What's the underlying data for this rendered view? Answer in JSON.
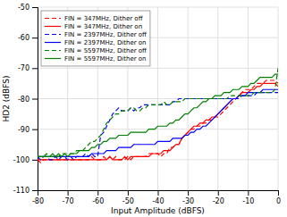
{
  "chart_data": {
    "type": "line",
    "xlabel": "Input Amplitude (dBFS)",
    "ylabel": "HD2 (dBFS)",
    "xlim": [
      -80,
      0
    ],
    "ylim": [
      -110,
      -50
    ],
    "xticks": [
      -80,
      -70,
      -60,
      -50,
      -40,
      -30,
      -20,
      -10,
      0
    ],
    "yticks": [
      -110,
      -100,
      -90,
      -80,
      -70,
      -60,
      -50
    ],
    "grid": true,
    "legend": "upper left",
    "x": [
      -80,
      -79,
      -78,
      -77,
      -76,
      -75,
      -74,
      -73,
      -72,
      -71,
      -70,
      -69,
      -68,
      -67,
      -66,
      -65,
      -64,
      -63,
      -62,
      -61,
      -60,
      -59,
      -58,
      -57,
      -56,
      -55,
      -54,
      -53,
      -52,
      -51,
      -50,
      -49,
      -48,
      -47,
      -46,
      -45,
      -44,
      -43,
      -42,
      -41,
      -40,
      -39,
      -38,
      -37,
      -36,
      -35,
      -34,
      -33,
      -32,
      -31,
      -30,
      -29,
      -28,
      -27,
      -26,
      -25,
      -24,
      -23,
      -22,
      -21,
      -20,
      -19,
      -18,
      -17,
      -16,
      -15,
      -14,
      -13,
      -12,
      -11,
      -10,
      -9,
      -8,
      -7,
      -6,
      -5,
      -4,
      -3,
      -2,
      -1,
      0
    ],
    "series": [
      {
        "name": "FIN = 347MHz, Dither off",
        "color": "#FF0000",
        "line_style": "dashed",
        "values": [
          -100,
          -101,
          -100,
          -100,
          -100,
          -100,
          -100,
          -100,
          -100,
          -100,
          -100,
          -100,
          -100,
          -100,
          -100,
          -100,
          -100,
          -100,
          -99,
          -100,
          -100,
          -100,
          -99,
          -100,
          -99,
          -100,
          -99,
          -100,
          -100,
          -100,
          -99,
          -100,
          -99,
          -99,
          -99,
          -99,
          -99,
          -98,
          -98,
          -98,
          -98,
          -99,
          -98,
          -98,
          -96,
          -96,
          -95,
          -95,
          -93,
          -92,
          -91,
          -90,
          -90,
          -89,
          -89,
          -88,
          -88,
          -87,
          -87,
          -86,
          -86,
          -85,
          -84,
          -83,
          -82,
          -81,
          -80,
          -79,
          -78,
          -77,
          -77,
          -77,
          -76,
          -75,
          -75,
          -75,
          -74,
          -74,
          -74,
          -74,
          -75
        ]
      },
      {
        "name": "FIN = 347MHz, Dither on",
        "color": "#FF0000",
        "line_style": "solid",
        "values": [
          -100,
          -100,
          -100,
          -100,
          -100,
          -100,
          -100,
          -100,
          -100,
          -100,
          -100,
          -100,
          -100,
          -100,
          -100,
          -100,
          -100,
          -100,
          -100,
          -100,
          -100,
          -100,
          -100,
          -100,
          -99,
          -100,
          -100,
          -100,
          -100,
          -99,
          -100,
          -99,
          -99,
          -99,
          -99,
          -99,
          -99,
          -99,
          -98,
          -98,
          -98,
          -98,
          -97,
          -97,
          -97,
          -96,
          -95,
          -95,
          -93,
          -92,
          -91,
          -90,
          -89,
          -89,
          -88,
          -88,
          -87,
          -87,
          -86,
          -86,
          -85,
          -84,
          -83,
          -82,
          -81,
          -80,
          -80,
          -79,
          -78,
          -78,
          -78,
          -77,
          -77,
          -76,
          -76,
          -75,
          -75,
          -75,
          -75,
          -75,
          -76
        ]
      },
      {
        "name": "FIN = 2397MHz, Dither off",
        "color": "#0000FF",
        "line_style": "dashed",
        "values": [
          -99,
          -100,
          -99,
          -99,
          -100,
          -100,
          -99,
          -100,
          -99,
          -99,
          -100,
          -99,
          -100,
          -99,
          -99,
          -99,
          -98,
          -99,
          -98,
          -99,
          -99,
          -92,
          -91,
          -89,
          -87,
          -85,
          -84,
          -83,
          -84,
          -84,
          -84,
          -83,
          -84,
          -83,
          -83,
          -82,
          -82,
          -82,
          -82,
          -82,
          -82,
          -82,
          -82,
          -82,
          -82,
          -81,
          -81,
          -80,
          -80,
          -80,
          -80,
          -80,
          -80,
          -80,
          -80,
          -80,
          -80,
          -80,
          -80,
          -80,
          -80,
          -80,
          -80,
          -80,
          -80,
          -80,
          -80,
          -80,
          -79,
          -79,
          -79,
          -79,
          -79,
          -78,
          -78,
          -78,
          -78,
          -78,
          -78,
          -78,
          -78
        ]
      },
      {
        "name": "FIN = 2397MHz, Dither on",
        "color": "#0000FF",
        "line_style": "solid",
        "values": [
          -99,
          -99,
          -99,
          -99,
          -99,
          -99,
          -99,
          -99,
          -99,
          -99,
          -99,
          -99,
          -99,
          -99,
          -99,
          -99,
          -99,
          -99,
          -98,
          -98,
          -98,
          -98,
          -98,
          -97,
          -97,
          -97,
          -97,
          -96,
          -96,
          -96,
          -96,
          -96,
          -95,
          -95,
          -95,
          -95,
          -95,
          -95,
          -95,
          -95,
          -94,
          -94,
          -94,
          -94,
          -94,
          -93,
          -93,
          -93,
          -93,
          -92,
          -92,
          -91,
          -91,
          -90,
          -90,
          -89,
          -89,
          -88,
          -87,
          -86,
          -85,
          -84,
          -83,
          -82,
          -81,
          -80,
          -80,
          -79,
          -79,
          -79,
          -78,
          -78,
          -78,
          -78,
          -78,
          -77,
          -77,
          -77,
          -77,
          -77,
          -77
        ]
      },
      {
        "name": "FIN = 5597MHz, Dither off",
        "color": "#008000",
        "line_style": "dashed",
        "values": [
          -99,
          -99,
          -99,
          -98,
          -99,
          -99,
          -99,
          -99,
          -98,
          -98,
          -98,
          -98,
          -98,
          -97,
          -97,
          -97,
          -96,
          -95,
          -94,
          -94,
          -93,
          -92,
          -90,
          -88,
          -87,
          -86,
          -85,
          -85,
          -84,
          -84,
          -84,
          -83,
          -83,
          -84,
          -84,
          -83,
          -83,
          -82,
          -82,
          -82,
          -82,
          -82,
          -81,
          -82,
          -82,
          -81,
          -81,
          -81,
          -81,
          -80,
          -80,
          -80,
          -80,
          -80,
          -80,
          -80,
          -80,
          -80,
          -80,
          -80,
          -80,
          -80,
          -80,
          -80,
          -79,
          -79,
          -79,
          -79,
          -79,
          -79,
          -79,
          -79,
          -78,
          -78,
          -78,
          -78,
          -78,
          -78,
          -78,
          -77,
          -70
        ]
      },
      {
        "name": "FIN = 5597MHz, Dither on",
        "color": "#008000",
        "line_style": "solid",
        "values": [
          -99,
          -99,
          -99,
          -99,
          -99,
          -98,
          -99,
          -98,
          -99,
          -98,
          -99,
          -98,
          -98,
          -98,
          -97,
          -97,
          -97,
          -97,
          -96,
          -96,
          -95,
          -95,
          -94,
          -94,
          -93,
          -93,
          -93,
          -92,
          -92,
          -92,
          -92,
          -91,
          -91,
          -91,
          -91,
          -91,
          -91,
          -90,
          -90,
          -90,
          -89,
          -89,
          -89,
          -89,
          -88,
          -88,
          -87,
          -87,
          -86,
          -85,
          -85,
          -84,
          -83,
          -83,
          -82,
          -81,
          -81,
          -80,
          -80,
          -79,
          -79,
          -79,
          -78,
          -78,
          -78,
          -77,
          -77,
          -77,
          -76,
          -76,
          -76,
          -75,
          -75,
          -74,
          -73,
          -73,
          -73,
          -73,
          -73,
          -72,
          -72
        ]
      }
    ]
  }
}
